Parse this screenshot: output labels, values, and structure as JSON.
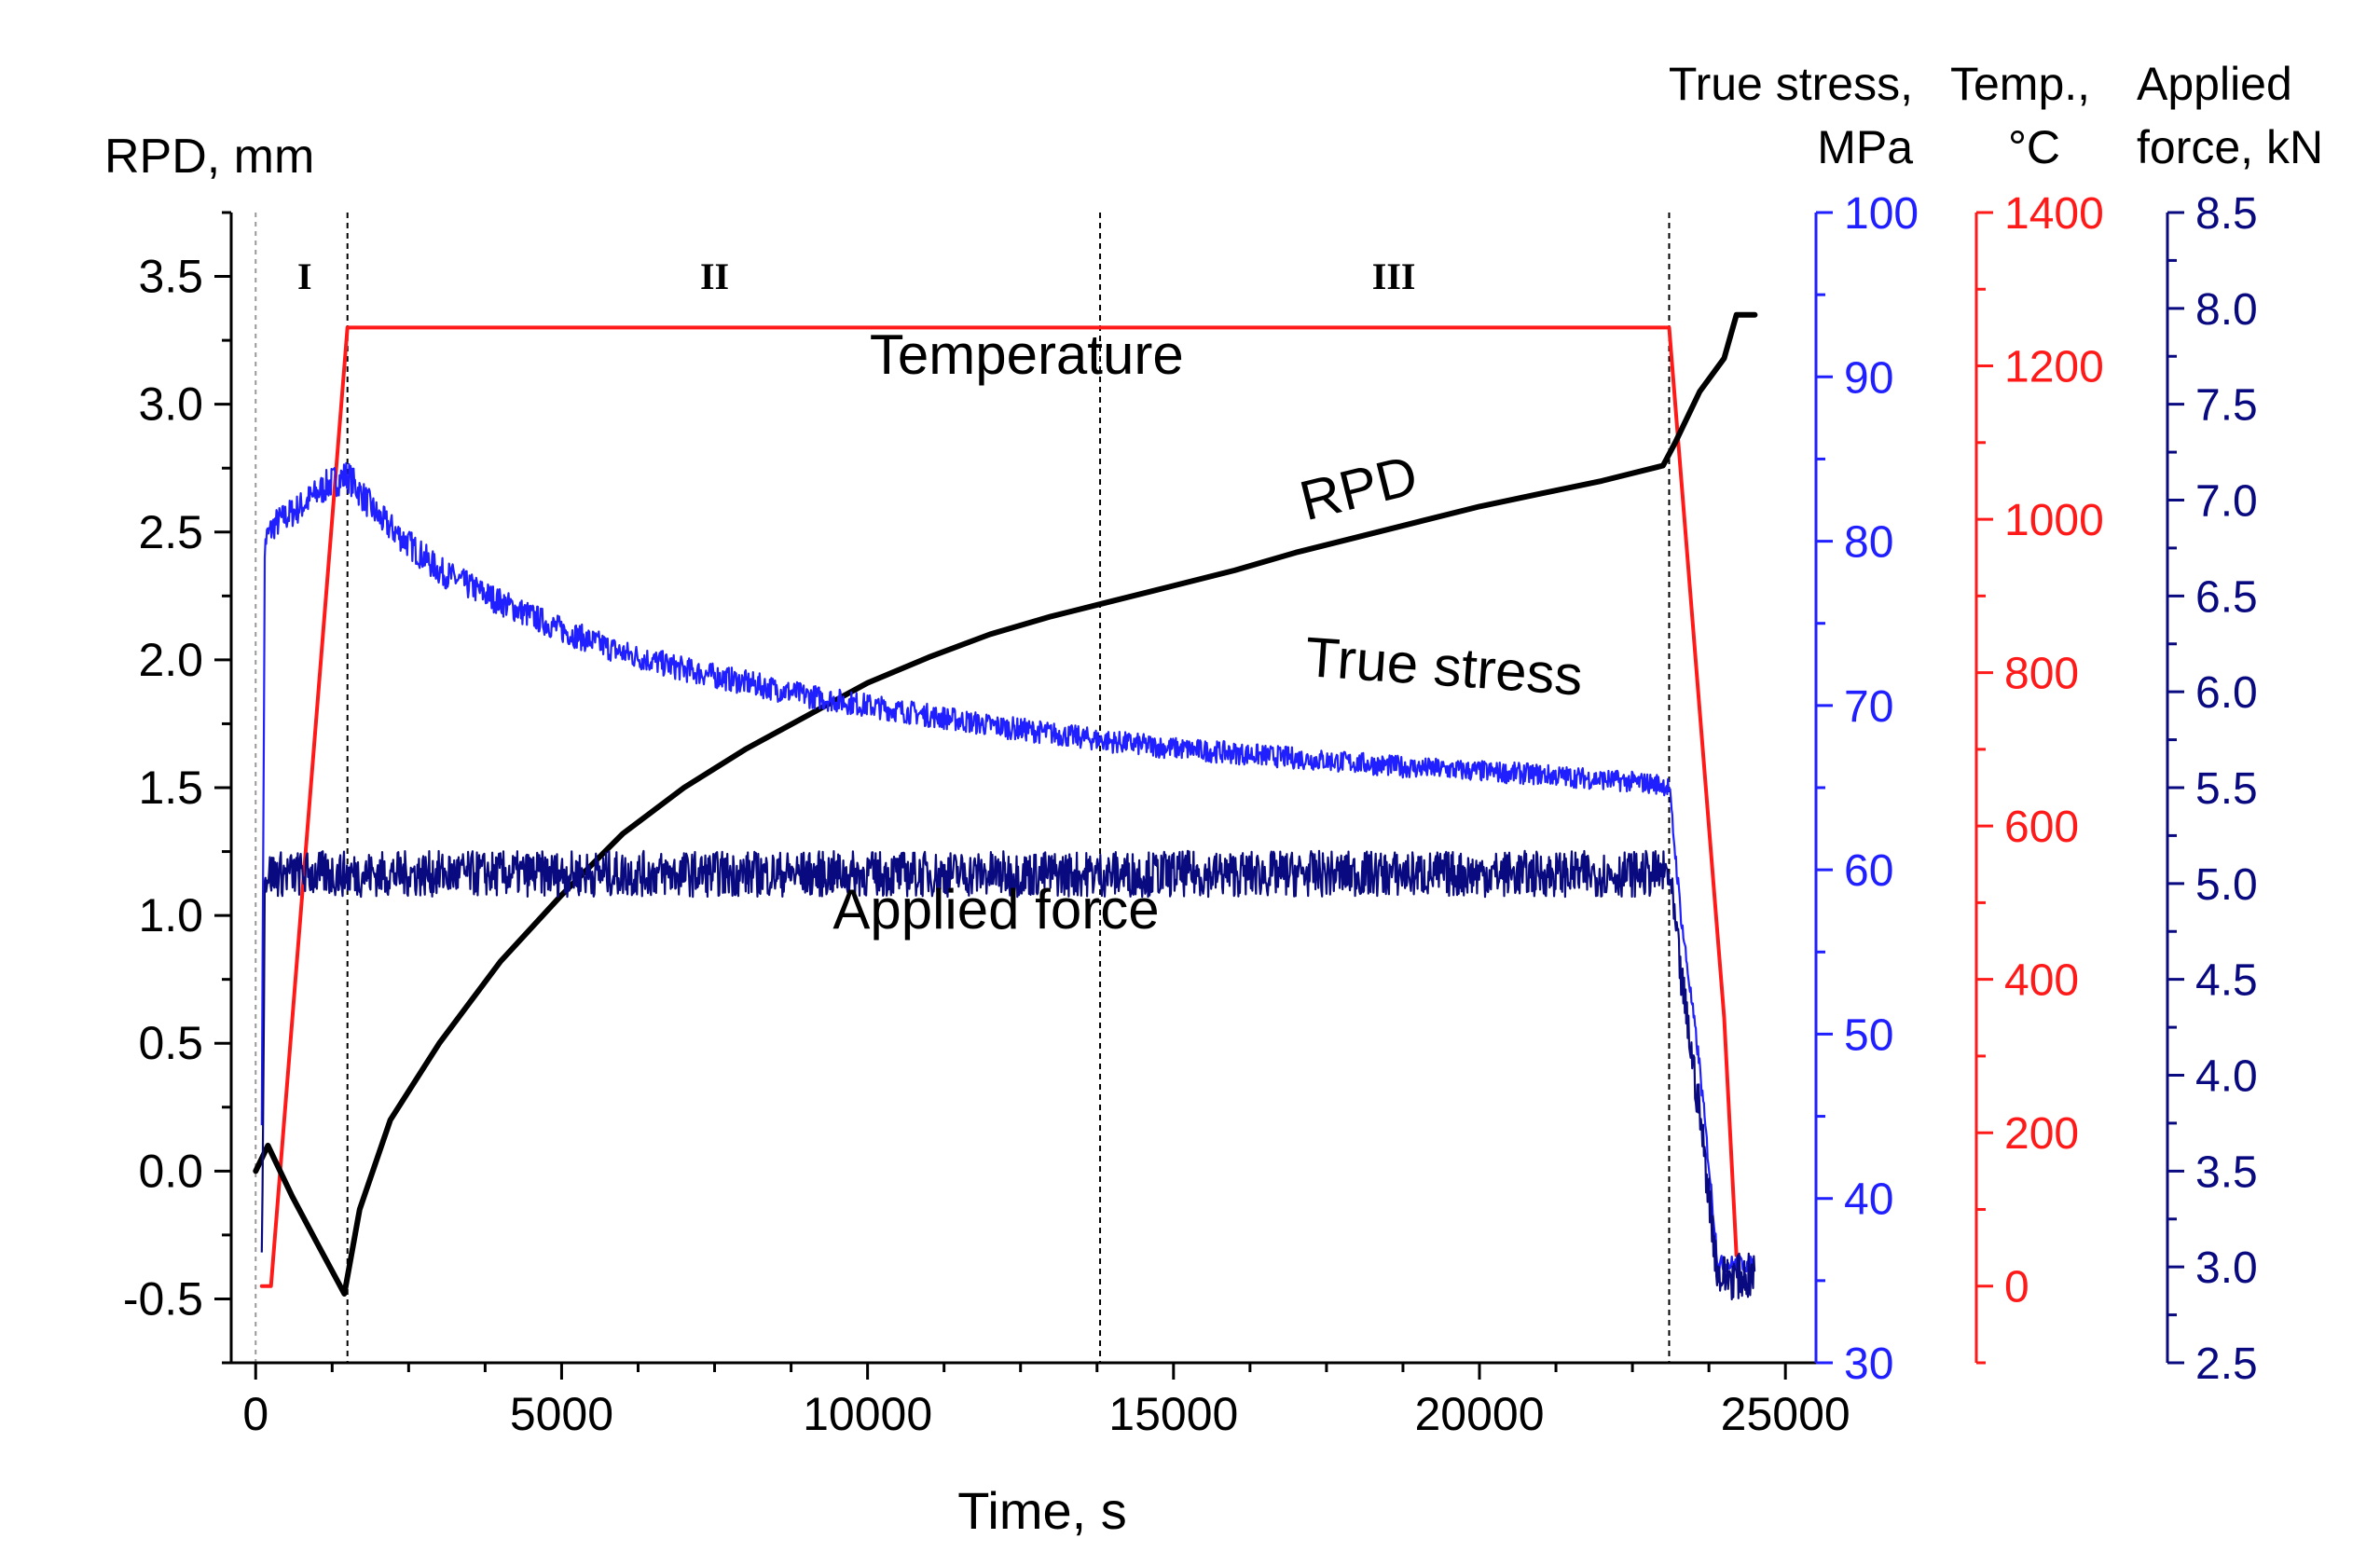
{
  "chart_data": {
    "type": "line",
    "x_axis": {
      "label": "Time, s",
      "range": [
        -400,
        25500
      ],
      "ticks": [
        0,
        5000,
        10000,
        15000,
        20000,
        25000
      ],
      "minor_step": 1250
    },
    "axes": {
      "rpd": {
        "title_lines": [
          "RPD, mm"
        ],
        "range": [
          -0.75,
          3.75
        ],
        "ticks": [
          -0.5,
          0.0,
          0.5,
          1.0,
          1.5,
          2.0,
          2.5,
          3.0,
          3.5
        ],
        "tick_labels": [
          "-0.5",
          "0.0",
          "0.5",
          "1.0",
          "1.5",
          "2.0",
          "2.5",
          "3.0",
          "3.5"
        ],
        "minor_step": 0.25,
        "color": "#000000"
      },
      "stress": {
        "title_lines": [
          "True stress,",
          "MPa"
        ],
        "range": [
          30,
          100
        ],
        "ticks": [
          30,
          40,
          50,
          60,
          70,
          80,
          90,
          100
        ],
        "tick_labels": [
          "30",
          "40",
          "50",
          "60",
          "70",
          "80",
          "90",
          "100"
        ],
        "minor_step": 5,
        "color": "#1f1fff"
      },
      "temp": {
        "title_lines": [
          "Temp.,",
          "°C"
        ],
        "range": [
          -100,
          1400
        ],
        "ticks": [
          0,
          200,
          400,
          600,
          800,
          1000,
          1200,
          1400
        ],
        "tick_labels": [
          "0",
          "200",
          "400",
          "600",
          "800",
          "1000",
          "1200",
          "1400"
        ],
        "minor_step": 100,
        "color": "#ff1a1a"
      },
      "force": {
        "title_lines": [
          "Applied",
          "force, kN"
        ],
        "range": [
          2.5,
          8.5
        ],
        "ticks": [
          2.5,
          3.0,
          3.5,
          4.0,
          4.5,
          5.0,
          5.5,
          6.0,
          6.5,
          7.0,
          7.5,
          8.0,
          8.5
        ],
        "tick_labels": [
          "2.5",
          "3.0",
          "3.5",
          "4.0",
          "4.5",
          "5.0",
          "5.5",
          "6.0",
          "6.5",
          "7.0",
          "7.5",
          "8.0",
          "8.5"
        ],
        "minor_step": 0.25,
        "color": "#0a0a80"
      }
    },
    "stage_lines": [
      1500,
      13800,
      23100
    ],
    "stage_labels": [
      {
        "text": "I",
        "x": 800
      },
      {
        "text": "II",
        "x": 7500
      },
      {
        "text": "III",
        "x": 18600
      }
    ],
    "series": [
      {
        "name": "Temperature",
        "axis": "temp",
        "color": "#ff1a1a",
        "x": [
          100,
          250,
          1500,
          23100,
          24000,
          24200
        ],
        "y": [
          0,
          0,
          1250,
          1250,
          350,
          40
        ]
      },
      {
        "name": "RPD",
        "axis": "rpd",
        "color": "#000000",
        "x": [
          0,
          200,
          600,
          1000,
          1450,
          1700,
          2200,
          3000,
          4000,
          5000,
          6000,
          7000,
          8000,
          9000,
          10000,
          11000,
          12000,
          13000,
          14000,
          15000,
          16000,
          17000,
          18000,
          19000,
          20000,
          21000,
          22000,
          23000,
          23200,
          23600,
          24000,
          24200,
          24500
        ],
        "y": [
          0.0,
          0.1,
          -0.1,
          -0.28,
          -0.48,
          -0.15,
          0.2,
          0.5,
          0.82,
          1.08,
          1.32,
          1.5,
          1.65,
          1.78,
          1.91,
          2.01,
          2.1,
          2.17,
          2.23,
          2.29,
          2.35,
          2.42,
          2.48,
          2.54,
          2.6,
          2.65,
          2.7,
          2.76,
          2.85,
          3.05,
          3.18,
          3.35,
          3.35
        ]
      },
      {
        "name": "True stress",
        "axis": "stress",
        "color": "#1f1fff",
        "x": [
          100,
          150,
          300,
          700,
          1200,
          1500,
          2000,
          3000,
          4000,
          5000,
          6000,
          7000,
          8000,
          9000,
          10000,
          11000,
          12000,
          13000,
          14000,
          15000,
          16000,
          17000,
          18000,
          19000,
          20000,
          21000,
          22000,
          23000,
          23100,
          23300,
          23600,
          23900,
          24200,
          24500
        ],
        "y": [
          45,
          80,
          81,
          82,
          83.5,
          84,
          81.5,
          78.2,
          76.3,
          74.6,
          73.2,
          72.2,
          71.4,
          70.6,
          70.0,
          69.4,
          68.8,
          68.3,
          67.8,
          67.4,
          67.1,
          66.8,
          66.5,
          66.2,
          66.0,
          65.8,
          65.5,
          65.2,
          65,
          57,
          48,
          36,
          36,
          36
        ]
      },
      {
        "name": "Applied force",
        "axis": "force",
        "color": "#0a0a80",
        "x": [
          100,
          150,
          300,
          23100,
          23300,
          23600,
          23900,
          24200,
          24500
        ],
        "y": [
          3.0,
          5.05,
          5.05,
          5.05,
          4.5,
          3.8,
          2.95,
          2.95,
          2.95
        ]
      }
    ],
    "annotations": [
      {
        "text": "Temperature",
        "x": 12600,
        "axis": "rpd",
        "y": 3.12
      },
      {
        "text": "RPD",
        "x": 18100,
        "axis": "rpd",
        "y": 2.6
      },
      {
        "text": "True stress",
        "x": 19400,
        "axis": "rpd",
        "y": 1.9
      },
      {
        "text": "Applied force",
        "x": 12100,
        "axis": "rpd",
        "y": 0.95
      }
    ]
  }
}
